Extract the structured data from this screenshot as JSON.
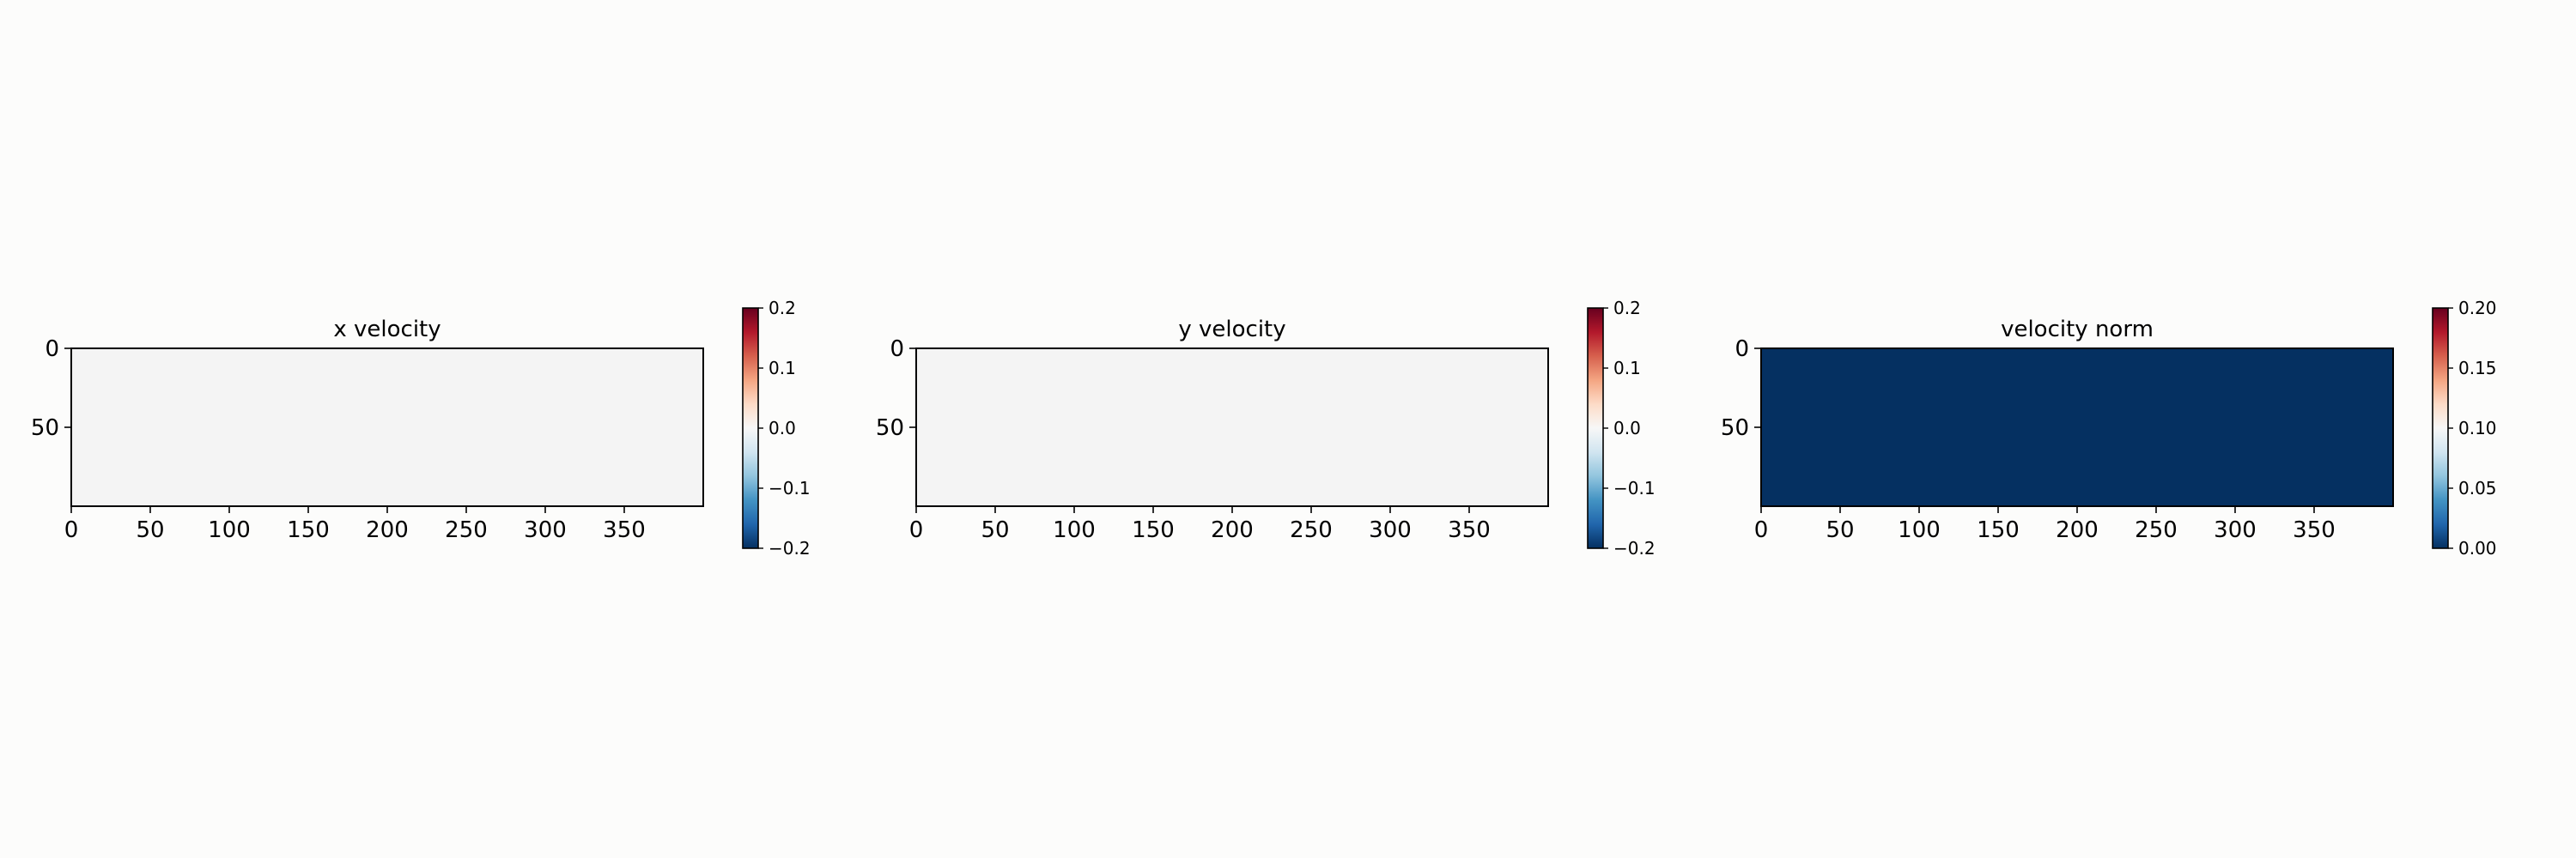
{
  "chart_data": [
    {
      "type": "heatmap",
      "title": "x velocity",
      "xlabel": "",
      "ylabel": "",
      "xlim": [
        0,
        400
      ],
      "ylim": [
        100,
        0
      ],
      "xticks": [
        "0",
        "50",
        "100",
        "150",
        "200",
        "250",
        "300",
        "350"
      ],
      "yticks": [
        "0",
        "50"
      ],
      "field_value": 0.0,
      "fill_color": "#f4f4f4",
      "colorbar": {
        "colormap": "RdBu_r",
        "range": [
          -0.2,
          0.2
        ],
        "ticks": [
          "0.2",
          "0.1",
          "0.0",
          "−0.1",
          "−0.2"
        ]
      }
    },
    {
      "type": "heatmap",
      "title": "y velocity",
      "xlabel": "",
      "ylabel": "",
      "xlim": [
        0,
        400
      ],
      "ylim": [
        100,
        0
      ],
      "xticks": [
        "0",
        "50",
        "100",
        "150",
        "200",
        "250",
        "300",
        "350"
      ],
      "yticks": [
        "0",
        "50"
      ],
      "field_value": 0.0,
      "fill_color": "#f4f4f4",
      "colorbar": {
        "colormap": "RdBu_r",
        "range": [
          -0.2,
          0.2
        ],
        "ticks": [
          "0.2",
          "0.1",
          "0.0",
          "−0.1",
          "−0.2"
        ]
      }
    },
    {
      "type": "heatmap",
      "title": "velocity norm",
      "xlabel": "",
      "ylabel": "",
      "xlim": [
        0,
        400
      ],
      "ylim": [
        100,
        0
      ],
      "xticks": [
        "0",
        "50",
        "100",
        "150",
        "200",
        "250",
        "300",
        "350"
      ],
      "yticks": [
        "0",
        "50"
      ],
      "field_value": 0.0,
      "fill_color": "#053061",
      "colorbar": {
        "colormap": "RdBu_r",
        "range": [
          0.0,
          0.2
        ],
        "ticks": [
          "0.20",
          "0.15",
          "0.10",
          "0.05",
          "0.00"
        ]
      }
    }
  ],
  "colors": {
    "background": "#fcfcfb",
    "colormap_stops": [
      "#053061",
      "#2166ac",
      "#4393c3",
      "#92c5de",
      "#d1e5f0",
      "#f7f7f7",
      "#fddbc7",
      "#f4a582",
      "#d6604d",
      "#b2182b",
      "#67001f"
    ]
  }
}
